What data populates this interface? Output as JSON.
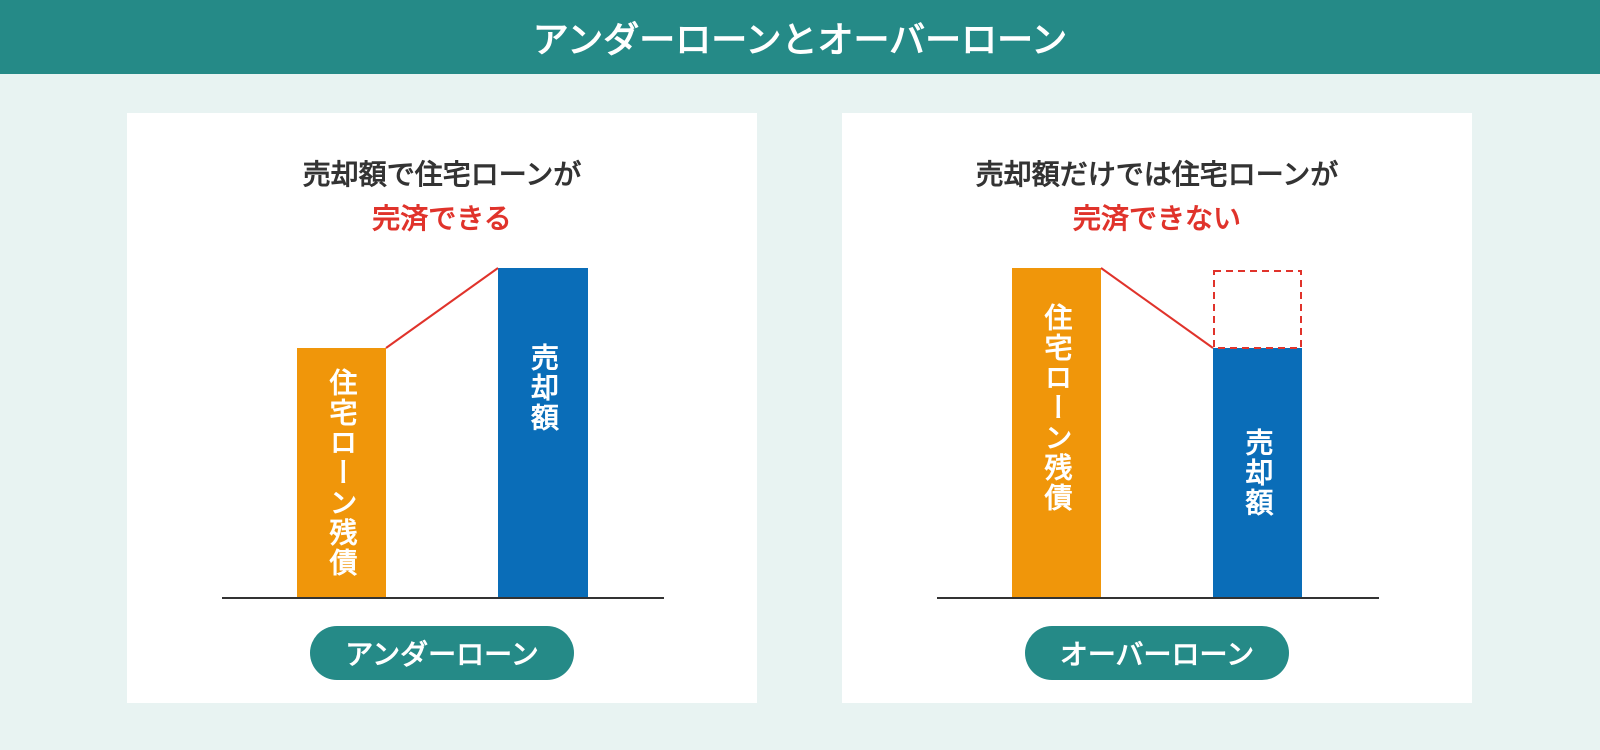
{
  "header": {
    "title": "アンダーローンとオーバーローン"
  },
  "panels": [
    {
      "heading": [
        "売却額で住宅ローンが",
        "完済できる"
      ],
      "bars": [
        "住宅ローン残債",
        "売却額"
      ],
      "label": "アンダーローン"
    },
    {
      "heading": [
        "売却額だけでは住宅ローンが",
        "完済できない"
      ],
      "bars": [
        "住宅ローン残債",
        "売却額"
      ],
      "label": "オーバーローン"
    }
  ]
}
